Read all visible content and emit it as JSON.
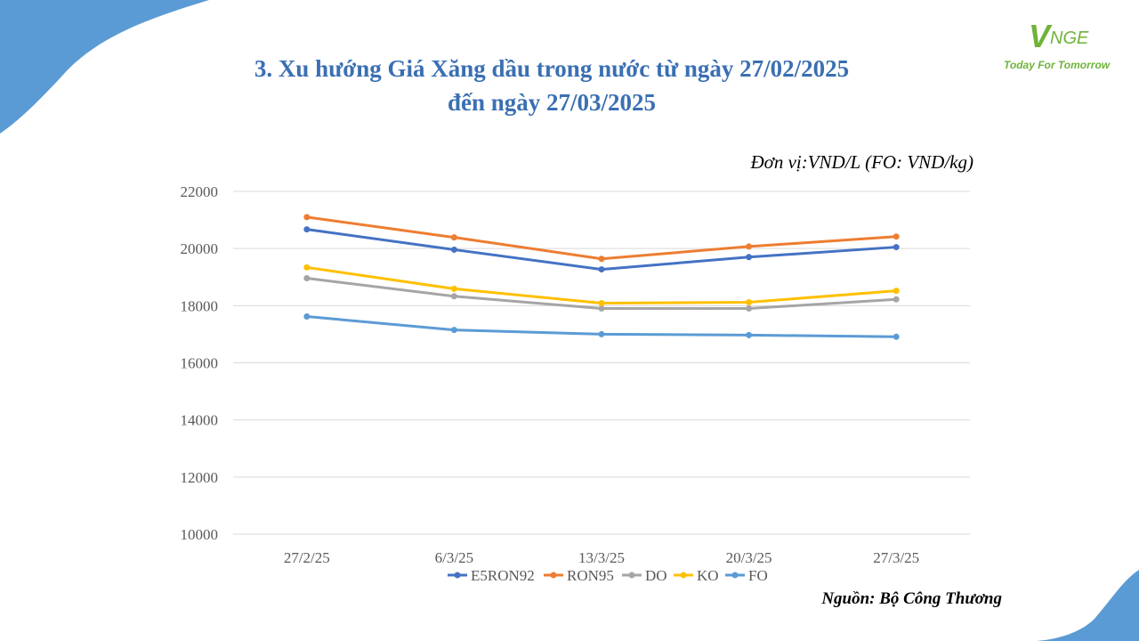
{
  "title_line1": "3. Xu hướng Giá Xăng dầu trong nước từ ngày 27/02/2025",
  "title_line2": "đến ngày 27/03/2025",
  "logo": {
    "text": "VNGE",
    "tagline": "Today For Tomorrow",
    "color": "#6fb33a"
  },
  "unit_note": "Đơn vị:VND/L (FO: VND/kg)",
  "source_note": "Nguồn: Bộ Công Thương",
  "colors": {
    "accent": "#3a6fb3",
    "decoration": "#5b9bd5"
  },
  "chart_data": {
    "type": "line",
    "categories": [
      "27/2/25",
      "6/3/25",
      "13/3/25",
      "20/3/25",
      "27/3/25"
    ],
    "ylim": [
      10000,
      22000
    ],
    "yticks": [
      "10000",
      "12000",
      "14000",
      "16000",
      "18000",
      "20000",
      "22000"
    ],
    "grid": true,
    "legend_position": "bottom",
    "series": [
      {
        "name": "E5RON92",
        "color": "#4472c4",
        "values": [
          20670,
          19960,
          19270,
          19700,
          20050
        ]
      },
      {
        "name": "RON95",
        "color": "#ed7d31",
        "values": [
          21100,
          20390,
          19640,
          20070,
          20420
        ]
      },
      {
        "name": "DO",
        "color": "#a5a5a5",
        "values": [
          18960,
          18330,
          17900,
          17900,
          18220
        ]
      },
      {
        "name": "KO",
        "color": "#ffc000",
        "values": [
          19340,
          18590,
          18090,
          18120,
          18520
        ]
      },
      {
        "name": "FO",
        "color": "#5b9bd5",
        "values": [
          17620,
          17150,
          17000,
          16970,
          16910
        ]
      }
    ]
  }
}
